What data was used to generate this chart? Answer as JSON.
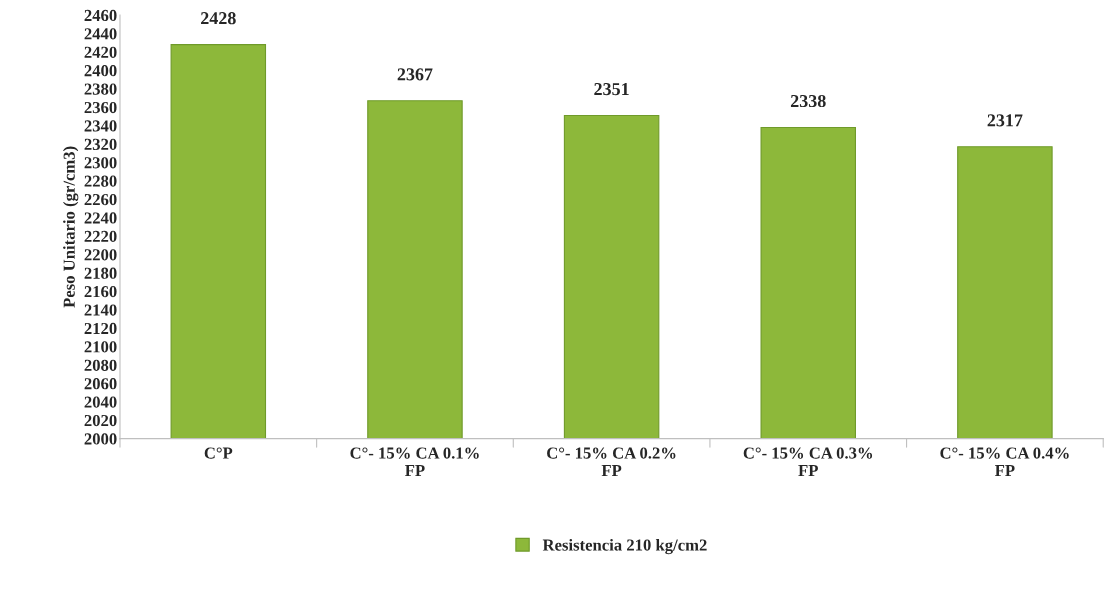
{
  "chart_data": {
    "type": "bar",
    "ylabel": "Peso Unitario (gr/cm3)",
    "categories": [
      "C°P",
      "C°- 15% CA 0.1%\nFP",
      "C°- 15% CA 0.2%\nFP",
      "C°- 15% CA 0.3%\nFP",
      "C°- 15% CA 0.4%\nFP"
    ],
    "series": [
      {
        "name": "Resistencia 210 kg/cm2",
        "color": "#8db83a",
        "values": [
          2428,
          2367,
          2351,
          2338,
          2317
        ]
      }
    ],
    "ylim": [
      2000,
      2460
    ],
    "yticks": [
      2000,
      2020,
      2040,
      2060,
      2080,
      2100,
      2120,
      2140,
      2160,
      2180,
      2200,
      2220,
      2240,
      2260,
      2280,
      2300,
      2320,
      2340,
      2360,
      2380,
      2400,
      2420,
      2440,
      2460
    ],
    "data_labels": true,
    "grid": false,
    "legend": "bottom"
  }
}
